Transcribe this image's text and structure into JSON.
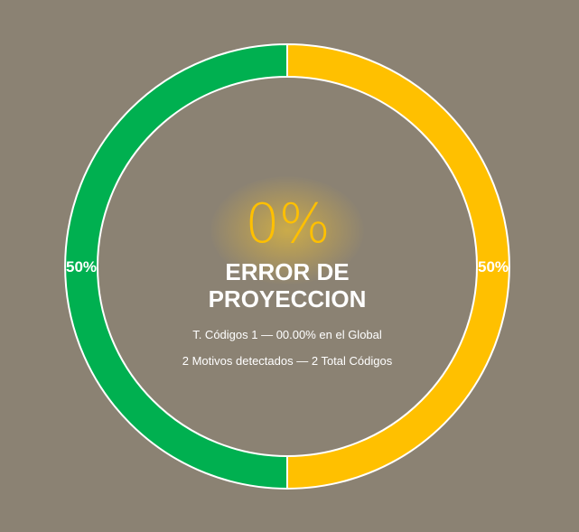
{
  "chart_data": {
    "type": "pie",
    "categories": [
      "",
      ""
    ],
    "values": [
      50,
      50
    ],
    "data_labels": [
      "50%",
      "50%"
    ],
    "colors": [
      "#ffc000",
      "#00b050"
    ],
    "donut": true,
    "legend": "none"
  },
  "center": {
    "percentage": "0%",
    "title": "ERROR DE PROYECCION",
    "line1": "T. Códigos 1 — 00.00% en el Global",
    "line2": "2 Motivos detectados — 2 Total Códigos"
  },
  "colors": {
    "background": "#8b8273",
    "accent": "#ffc000",
    "positive": "#00b050"
  }
}
